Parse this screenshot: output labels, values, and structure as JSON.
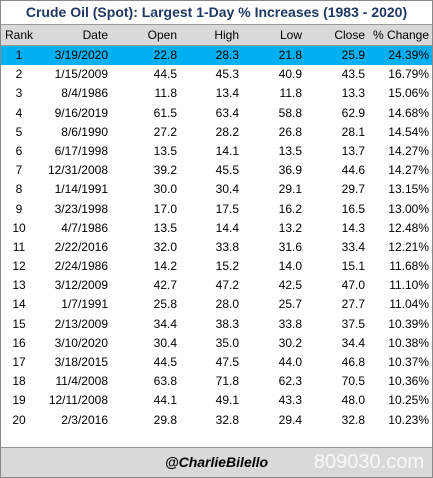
{
  "header": {
    "title": "Crude Oil (Spot): Largest 1-Day % Increases (1983 - 2020)"
  },
  "table": {
    "columns": [
      "Rank",
      "Date",
      "Open",
      "High",
      "Low",
      "Close",
      "% Change"
    ],
    "rows": [
      [
        "1",
        "3/19/2020",
        "22.8",
        "28.3",
        "21.8",
        "25.9",
        "24.39%"
      ],
      [
        "2",
        "1/15/2009",
        "44.5",
        "45.3",
        "40.9",
        "43.5",
        "16.79%"
      ],
      [
        "3",
        "8/4/1986",
        "11.8",
        "13.4",
        "11.8",
        "13.3",
        "15.06%"
      ],
      [
        "4",
        "9/16/2019",
        "61.5",
        "63.4",
        "58.8",
        "62.9",
        "14.68%"
      ],
      [
        "5",
        "8/6/1990",
        "27.2",
        "28.2",
        "26.8",
        "28.1",
        "14.54%"
      ],
      [
        "6",
        "6/17/1998",
        "13.5",
        "14.1",
        "13.5",
        "13.7",
        "14.27%"
      ],
      [
        "7",
        "12/31/2008",
        "39.2",
        "45.5",
        "36.9",
        "44.6",
        "14.27%"
      ],
      [
        "8",
        "1/14/1991",
        "30.0",
        "30.4",
        "29.1",
        "29.7",
        "13.15%"
      ],
      [
        "9",
        "3/23/1998",
        "17.0",
        "17.5",
        "16.2",
        "16.5",
        "13.00%"
      ],
      [
        "10",
        "4/7/1986",
        "13.5",
        "14.4",
        "13.2",
        "14.3",
        "12.48%"
      ],
      [
        "11",
        "2/22/2016",
        "32.0",
        "33.8",
        "31.6",
        "33.4",
        "12.21%"
      ],
      [
        "12",
        "2/24/1986",
        "14.2",
        "15.2",
        "14.0",
        "15.1",
        "11.68%"
      ],
      [
        "13",
        "3/12/2009",
        "42.7",
        "47.2",
        "42.5",
        "47.0",
        "11.10%"
      ],
      [
        "14",
        "1/7/1991",
        "25.8",
        "28.0",
        "25.7",
        "27.7",
        "11.04%"
      ],
      [
        "15",
        "2/13/2009",
        "34.4",
        "38.3",
        "33.8",
        "37.5",
        "10.39%"
      ],
      [
        "16",
        "3/10/2020",
        "30.4",
        "35.0",
        "30.2",
        "34.4",
        "10.38%"
      ],
      [
        "17",
        "3/18/2015",
        "44.5",
        "47.5",
        "44.0",
        "46.8",
        "10.37%"
      ],
      [
        "18",
        "11/4/2008",
        "63.8",
        "71.8",
        "62.3",
        "70.5",
        "10.36%"
      ],
      [
        "19",
        "12/11/2008",
        "44.1",
        "49.1",
        "43.3",
        "48.0",
        "10.25%"
      ],
      [
        "20",
        "2/3/2016",
        "29.8",
        "32.8",
        "29.4",
        "32.8",
        "10.23%"
      ]
    ]
  },
  "footer": {
    "handle": "@CharlieBilello",
    "watermark": "809030.com"
  }
}
